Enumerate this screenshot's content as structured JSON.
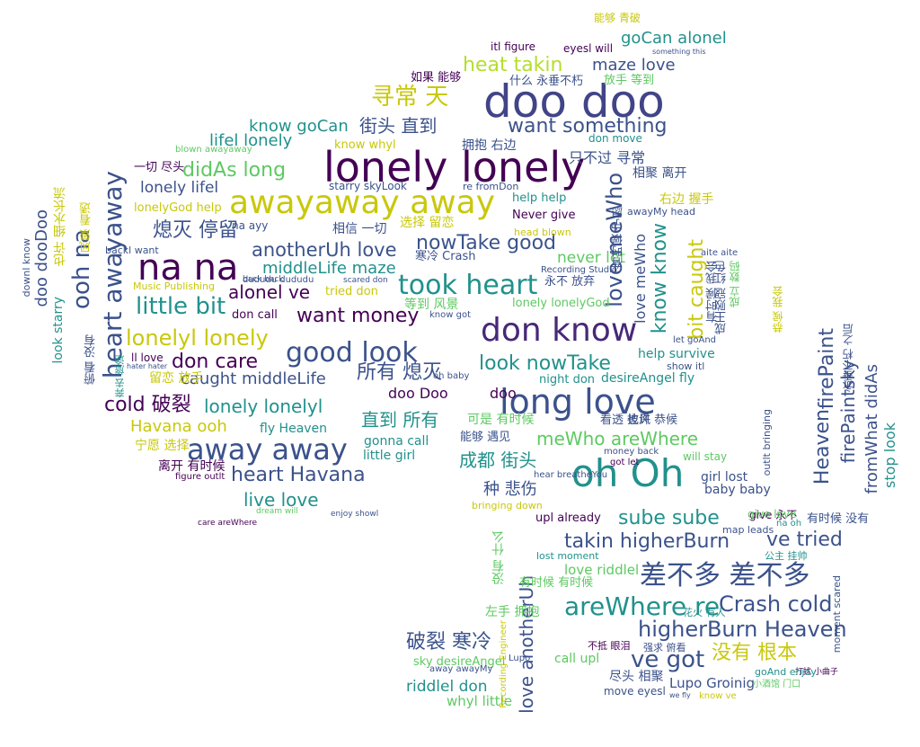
{
  "palette": {
    "dark_purple": "#440154",
    "indigo": "#3b528b",
    "teal": "#21918c",
    "green": "#5ec962",
    "yellow": "#c8c80c"
  },
  "words": [
    {
      "text": "doo doo",
      "color": "#414487"
    },
    {
      "text": "lonely lonely",
      "color": "#440154"
    },
    {
      "text": "awayaway away",
      "color": "#c8c80c"
    },
    {
      "text": "na na",
      "color": "#440154"
    },
    {
      "text": "oh Oh",
      "color": "#21918c"
    },
    {
      "text": "long love",
      "color": "#3b528b"
    },
    {
      "text": "don know",
      "color": "#482878"
    },
    {
      "text": "took heart",
      "color": "#21918c"
    },
    {
      "text": "good look",
      "color": "#3b528b"
    },
    {
      "text": "away away",
      "color": "#3b528b"
    },
    {
      "text": "差不多 差不多",
      "color": "#3b528b"
    },
    {
      "text": "areWhere re",
      "color": "#21918c"
    },
    {
      "text": "higherBurn Heaven",
      "color": "#3b528b"
    },
    {
      "text": "heat takin",
      "color": "#b5de2b"
    },
    {
      "text": "maze love",
      "color": "#3b528b"
    },
    {
      "text": "goCan alonel",
      "color": "#21918c"
    },
    {
      "text": "寻常 天",
      "color": "#c8c80c"
    },
    {
      "text": "want something",
      "color": "#3b528b"
    },
    {
      "text": "know goCan",
      "color": "#21918c"
    },
    {
      "text": "街头 直到",
      "color": "#3b528b"
    },
    {
      "text": "lifel lonely",
      "color": "#21918c"
    },
    {
      "text": "didAs long",
      "color": "#5ec962"
    },
    {
      "text": "lonely lifel",
      "color": "#3b528b"
    },
    {
      "text": "熄灭 停留",
      "color": "#3b528b"
    },
    {
      "text": "anotherUh love",
      "color": "#3b528b"
    },
    {
      "text": "nowTake good",
      "color": "#3b528b"
    },
    {
      "text": "middleLife maze",
      "color": "#21918c"
    },
    {
      "text": "alonel ve",
      "color": "#440154"
    },
    {
      "text": "little bit",
      "color": "#21918c"
    },
    {
      "text": "want money",
      "color": "#440154"
    },
    {
      "text": "lonelyl lonely",
      "color": "#c8c80c"
    },
    {
      "text": "所有 熄灭",
      "color": "#3b528b"
    },
    {
      "text": "look nowTake",
      "color": "#21918c"
    },
    {
      "text": "don care",
      "color": "#440154"
    },
    {
      "text": "caught middleLife",
      "color": "#3b528b"
    },
    {
      "text": "cold 破裂",
      "color": "#440154"
    },
    {
      "text": "lonely lonelyl",
      "color": "#21918c"
    },
    {
      "text": "直到 所有",
      "color": "#21918c"
    },
    {
      "text": "Havana ooh",
      "color": "#c8c80c"
    },
    {
      "text": "heart Havana",
      "color": "#3b528b"
    },
    {
      "text": "live love",
      "color": "#21918c"
    },
    {
      "text": "meWho areWhere",
      "color": "#5ec962"
    },
    {
      "text": "成都 街头",
      "color": "#21918c"
    },
    {
      "text": "种 悲伤",
      "color": "#3b528b"
    },
    {
      "text": "sube sube",
      "color": "#21918c"
    },
    {
      "text": "takin higherBurn",
      "color": "#3b528b"
    },
    {
      "text": "ve tried",
      "color": "#3b528b"
    },
    {
      "text": "Crash cold",
      "color": "#3b528b"
    },
    {
      "text": "没有 根本",
      "color": "#c8c80c"
    },
    {
      "text": "ve got",
      "color": "#3b528b"
    },
    {
      "text": "破裂 寒冷",
      "color": "#3b528b"
    },
    {
      "text": "riddlel don",
      "color": "#21918c"
    },
    {
      "text": "whyl little",
      "color": "#5ec962"
    },
    {
      "text": "Lupo Groinig",
      "color": "#3b528b"
    },
    {
      "text": "love riddlel",
      "color": "#5ec962"
    },
    {
      "text": "doo dooDoo",
      "color": "#3b528b"
    },
    {
      "text": "ooh na",
      "color": "#3b528b"
    },
    {
      "text": "heart awayaway",
      "color": "#3b528b"
    },
    {
      "text": "love meWho",
      "color": "#3b528b"
    },
    {
      "text": "know know",
      "color": "#21918c"
    },
    {
      "text": "bit caught",
      "color": "#c8c80c"
    },
    {
      "text": "firePaint",
      "color": "#3b528b"
    },
    {
      "text": "firePaintsky",
      "color": "#3b528b"
    },
    {
      "text": "Heaven",
      "color": "#3b528b"
    },
    {
      "text": "fromWhat didAs",
      "color": "#3b528b"
    },
    {
      "text": "love anotherUh",
      "color": "#3b528b"
    },
    {
      "text": "stop look",
      "color": "#21918c"
    },
    {
      "text": "lonely lonelyGod",
      "color": "#5ec962"
    },
    {
      "text": "never let",
      "color": "#5ec962"
    },
    {
      "text": "tried don",
      "color": "#c8c80c"
    },
    {
      "text": "starry skyLook",
      "color": "#3b528b"
    },
    {
      "text": "Never give",
      "color": "#440154"
    },
    {
      "text": "help help",
      "color": "#21918c"
    },
    {
      "text": "doo",
      "color": "#440154"
    },
    {
      "text": "doo Doo",
      "color": "#440154"
    },
    {
      "text": "desireAngel fly",
      "color": "#21918c"
    },
    {
      "text": "help survive",
      "color": "#21918c"
    },
    {
      "text": "baby baby",
      "color": "#3b528b"
    },
    {
      "text": "girl lost",
      "color": "#3b528b"
    },
    {
      "text": "gonna call",
      "color": "#21918c"
    },
    {
      "text": "little girl",
      "color": "#21918c"
    },
    {
      "text": "fly Heaven",
      "color": "#21918c"
    },
    {
      "text": "upl already",
      "color": "#440154"
    },
    {
      "text": "call upl",
      "color": "#5ec962"
    },
    {
      "text": "sky desireAngel",
      "color": "#5ec962"
    },
    {
      "text": "宁愿 选择",
      "color": "#c8c80c"
    },
    {
      "text": "离开 有时候",
      "color": "#440154"
    },
    {
      "text": "尽头 相聚",
      "color": "#3b528b"
    },
    {
      "text": "只不过 寻常",
      "color": "#3b528b"
    },
    {
      "text": "什么 永垂不朽",
      "color": "#3b528b"
    },
    {
      "text": "放手 等到",
      "color": "#5ec962"
    },
    {
      "text": "有时候 没有",
      "color": "#3b528b"
    },
    {
      "text": "永不 放弃",
      "color": "#3b528b"
    },
    {
      "text": "等到 风景",
      "color": "#5ec962"
    },
    {
      "text": "可是 有时候",
      "color": "#5ec962"
    },
    {
      "text": "能够 遇见",
      "color": "#3b528b"
    },
    {
      "text": "拥抱 右边",
      "color": "#3b528b"
    },
    {
      "text": "相聚 离开",
      "color": "#3b528b"
    },
    {
      "text": "如果 能够",
      "color": "#440154"
    },
    {
      "text": "留恋 放手",
      "color": "#c8c80c"
    },
    {
      "text": "永垂不朽 之后",
      "color": "#3b528b"
    },
    {
      "text": "没有 什么",
      "color": "#5ec962"
    },
    {
      "text": "左手 拥抱",
      "color": "#5ec962"
    },
    {
      "text": "有时候 有时候",
      "color": "#5ec962"
    },
    {
      "text": "能够 青破",
      "color": "#c8c80c"
    },
    {
      "text": "eyesl will",
      "color": "#440154"
    },
    {
      "text": "itl figure",
      "color": "#440154"
    },
    {
      "text": "don move",
      "color": "#21918c"
    },
    {
      "text": "blown awayaway",
      "color": "#5ec962"
    },
    {
      "text": "know whyl",
      "color": "#c8c80c"
    },
    {
      "text": "lonelyGod help",
      "color": "#c8c80c"
    },
    {
      "text": "一切 尽头",
      "color": "#440154"
    },
    {
      "text": "back back",
      "color": "#3b528b"
    },
    {
      "text": "don call",
      "color": "#440154"
    },
    {
      "text": "ll love",
      "color": "#440154"
    },
    {
      "text": "Music Publishing",
      "color": "#c8c80c"
    },
    {
      "text": "scared don",
      "color": "#3b528b"
    },
    {
      "text": "na ayy",
      "color": "#3b528b"
    },
    {
      "text": "相信 一切",
      "color": "#3b528b"
    },
    {
      "text": "选择 留恋",
      "color": "#c8c80c"
    },
    {
      "text": "寒冷 Crash",
      "color": "#3b528b"
    },
    {
      "text": "awayMy head",
      "color": "#3b528b"
    },
    {
      "text": "re fromDon",
      "color": "#3b528b"
    },
    {
      "text": "head blown",
      "color": "#c8c80c"
    },
    {
      "text": "night don",
      "color": "#21918c"
    },
    {
      "text": "show itl",
      "color": "#3b528b"
    },
    {
      "text": "let goAnd",
      "color": "#3b528b"
    },
    {
      "text": "aite aite",
      "color": "#3b528b"
    },
    {
      "text": "give 永不",
      "color": "#440154"
    },
    {
      "text": "na oh",
      "color": "#21918c"
    },
    {
      "text": "will stay",
      "color": "#5ec962"
    },
    {
      "text": "bringing down",
      "color": "#c8c80c"
    },
    {
      "text": "lost moment",
      "color": "#21918c"
    },
    {
      "text": "move eyesl",
      "color": "#3b528b"
    },
    {
      "text": "away awayMy",
      "color": "#3b528b"
    },
    {
      "text": "got let",
      "color": "#440154"
    },
    {
      "text": "money back",
      "color": "#3b528b"
    },
    {
      "text": "hear breatheYou",
      "color": "#3b528b"
    },
    {
      "text": "figure outlt",
      "color": "#440154"
    },
    {
      "text": "care areWhere",
      "color": "#440154"
    },
    {
      "text": "dream will",
      "color": "#5ec962"
    },
    {
      "text": "enjoy showl",
      "color": "#3b528b"
    },
    {
      "text": "Recording Studio",
      "color": "#3b528b"
    },
    {
      "text": "oh baby",
      "color": "#3b528b"
    },
    {
      "text": "know got",
      "color": "#3b528b"
    },
    {
      "text": "右边 握手",
      "color": "#c8c80c"
    },
    {
      "text": "有时候 宁愿",
      "color": "#3b528b"
    },
    {
      "text": "成立 数码",
      "color": "#5ec962"
    },
    {
      "text": "风景 看透",
      "color": "#c8c80c"
    },
    {
      "text": "也许 细水长流",
      "color": "#c8c80c"
    },
    {
      "text": "look starry",
      "color": "#21918c"
    },
    {
      "text": "俯看 没有",
      "color": "#3b528b"
    },
    {
      "text": "downl know",
      "color": "#3b528b"
    },
    {
      "text": "奔去 旅途",
      "color": "#21918c"
    },
    {
      "text": "看透 也许",
      "color": "#3b528b"
    },
    {
      "text": "披风 恭候",
      "color": "#3b528b"
    },
    {
      "text": "恭候 我会",
      "color": "#c8c80c"
    },
    {
      "text": "有时候 我会",
      "color": "#3b528b"
    },
    {
      "text": "成王败寇 红色",
      "color": "#3b528b"
    },
    {
      "text": "不抵 眼泪",
      "color": "#440154"
    },
    {
      "text": "强求 俯看",
      "color": "#3b528b"
    },
    {
      "text": "花火 有人",
      "color": "#21918c"
    },
    {
      "text": "小酒馆 门口",
      "color": "#5ec962"
    },
    {
      "text": "公主 挂帅",
      "color": "#21918c"
    },
    {
      "text": "打扰 小曲子",
      "color": "#440154"
    },
    {
      "text": "give love",
      "color": "#5ec962"
    },
    {
      "text": "map leads",
      "color": "#3b528b"
    },
    {
      "text": "moment scared",
      "color": "#3b528b"
    },
    {
      "text": "outlt bringing",
      "color": "#3b528b"
    },
    {
      "text": "goAnd enjoy",
      "color": "#21918c"
    },
    {
      "text": "know ve",
      "color": "#c8c80c"
    },
    {
      "text": "Recording Engineer",
      "color": "#c8c80c"
    },
    {
      "text": "Lupo",
      "color": "#3b528b"
    },
    {
      "text": "dududu dududu",
      "color": "#3b528b"
    },
    {
      "text": "backl want",
      "color": "#3b528b"
    },
    {
      "text": "hater hater",
      "color": "#3b528b"
    },
    {
      "text": "we fly",
      "color": "#3b528b"
    },
    {
      "text": "something this",
      "color": "#3b528b"
    }
  ]
}
